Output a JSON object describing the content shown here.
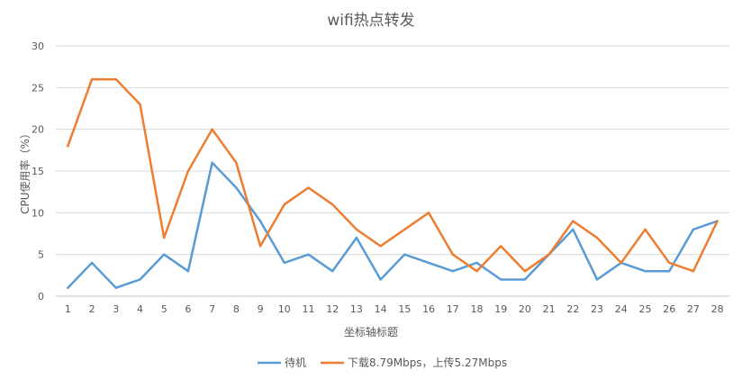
{
  "chart_data": {
    "type": "line",
    "title": "wifi热点转发",
    "xlabel": "坐标轴标题",
    "ylabel": "CPU使用率（%）",
    "ylim": [
      0,
      30
    ],
    "yticks": [
      0,
      5,
      10,
      15,
      20,
      25,
      30
    ],
    "categories": [
      "1",
      "2",
      "3",
      "4",
      "5",
      "6",
      "7",
      "8",
      "9",
      "10",
      "11",
      "12",
      "13",
      "14",
      "15",
      "16",
      "17",
      "18",
      "19",
      "20",
      "21",
      "22",
      "23",
      "24",
      "25",
      "26",
      "27",
      "28"
    ],
    "grid": true,
    "legend_position": "bottom",
    "series": [
      {
        "name": "待机",
        "color": "#5b9bd5",
        "values": [
          1,
          4,
          1,
          2,
          5,
          3,
          16,
          13,
          9,
          4,
          5,
          3,
          7,
          2,
          5,
          4,
          3,
          4,
          2,
          2,
          5,
          8,
          2,
          4,
          3,
          3,
          8,
          9
        ]
      },
      {
        "name": "下载8.79Mbps，上传5.27Mbps",
        "color": "#ed7d31",
        "values": [
          18,
          26,
          26,
          23,
          7,
          15,
          20,
          16,
          6,
          11,
          13,
          11,
          8,
          6,
          8,
          10,
          5,
          3,
          6,
          3,
          5,
          9,
          7,
          4,
          8,
          4,
          3,
          9
        ]
      }
    ]
  }
}
